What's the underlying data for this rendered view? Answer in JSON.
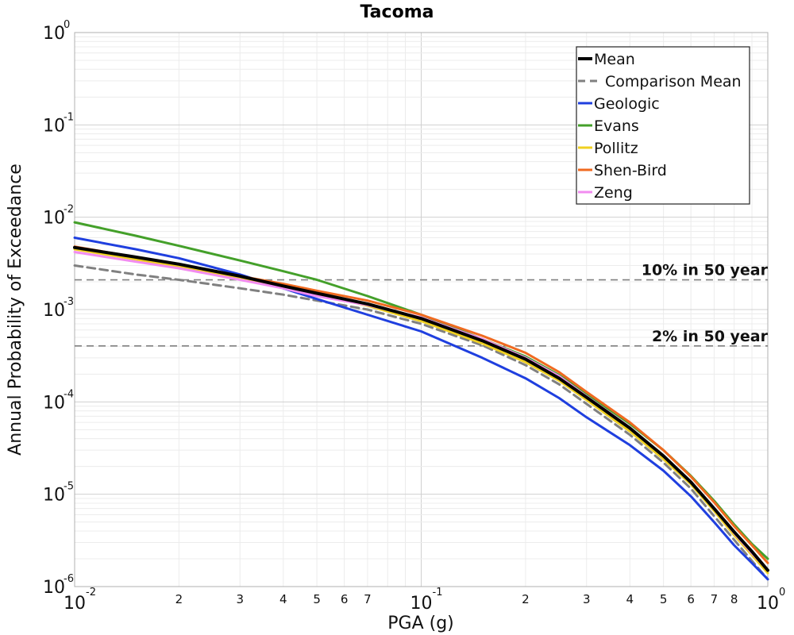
{
  "chart_data": {
    "type": "line",
    "title": "Tacoma",
    "xlabel": "PGA (g)",
    "ylabel": "Annual Probability of Exceedance",
    "xscale": "log",
    "yscale": "log",
    "xlim": [
      0.01,
      1
    ],
    "ylim": [
      1e-06,
      1
    ],
    "grid": true,
    "legend_position": "top-right",
    "x_ticks_major": [
      {
        "value": 0.01,
        "base": "10",
        "exp": "-2"
      },
      {
        "value": 0.1,
        "base": "10",
        "exp": "-1"
      },
      {
        "value": 1,
        "base": "10",
        "exp": "0"
      }
    ],
    "x_ticks_minor": [
      {
        "value": 0.02,
        "label": "2"
      },
      {
        "value": 0.03,
        "label": "3"
      },
      {
        "value": 0.04,
        "label": "4"
      },
      {
        "value": 0.05,
        "label": "5"
      },
      {
        "value": 0.06,
        "label": "6"
      },
      {
        "value": 0.07,
        "label": "7"
      },
      {
        "value": 0.2,
        "label": "2"
      },
      {
        "value": 0.3,
        "label": "3"
      },
      {
        "value": 0.4,
        "label": "4"
      },
      {
        "value": 0.5,
        "label": "5"
      },
      {
        "value": 0.6,
        "label": "6"
      },
      {
        "value": 0.7,
        "label": "7"
      },
      {
        "value": 0.8,
        "label": "8"
      }
    ],
    "y_ticks_major": [
      {
        "value": 1,
        "base": "10",
        "exp": "0"
      },
      {
        "value": 0.1,
        "base": "10",
        "exp": "-1"
      },
      {
        "value": 0.01,
        "base": "10",
        "exp": "-2"
      },
      {
        "value": 0.001,
        "base": "10",
        "exp": "-3"
      },
      {
        "value": 0.0001,
        "base": "10",
        "exp": "-4"
      },
      {
        "value": 1e-05,
        "base": "10",
        "exp": "-5"
      },
      {
        "value": 1e-06,
        "base": "10",
        "exp": "-6"
      }
    ],
    "x": [
      0.01,
      0.015,
      0.02,
      0.03,
      0.04,
      0.05,
      0.07,
      0.1,
      0.15,
      0.2,
      0.25,
      0.3,
      0.4,
      0.5,
      0.6,
      0.7,
      0.8,
      0.9,
      1.0
    ],
    "series": [
      {
        "name": "Mean",
        "color": "#000000",
        "dash": "solid",
        "width": 4,
        "values": [
          0.0047,
          0.0037,
          0.0031,
          0.0023,
          0.0018,
          0.0015,
          0.00115,
          0.0008,
          0.00046,
          0.00029,
          0.00018,
          0.000112,
          5.2e-05,
          2.6e-05,
          1.35e-05,
          7e-06,
          3.9e-06,
          2.4e-06,
          1.5e-06
        ]
      },
      {
        "name": "Comparison Mean",
        "color": "#808080",
        "dash": "dashed",
        "width": 3,
        "values": [
          0.003,
          0.0024,
          0.0021,
          0.0017,
          0.00145,
          0.00125,
          0.001,
          0.0007,
          0.00041,
          0.00025,
          0.000155,
          9.5e-05,
          4.4e-05,
          2.2e-05,
          1.15e-05,
          5.8e-06,
          3.2e-06,
          1.9e-06,
          1.2e-06
        ]
      },
      {
        "name": "Geologic",
        "color": "#1f3fdf",
        "dash": "solid",
        "width": 3,
        "values": [
          0.006,
          0.0045,
          0.0036,
          0.0024,
          0.0017,
          0.0013,
          0.00088,
          0.00058,
          0.0003,
          0.00018,
          0.00011,
          6.8e-05,
          3.4e-05,
          1.8e-05,
          9.5e-06,
          5e-06,
          2.8e-06,
          1.8e-06,
          1.2e-06
        ]
      },
      {
        "name": "Evans",
        "color": "#44a02a",
        "dash": "solid",
        "width": 3,
        "values": [
          0.0088,
          0.0063,
          0.0049,
          0.0034,
          0.0026,
          0.0021,
          0.0014,
          0.00088,
          0.00048,
          0.00031,
          0.000195,
          0.000122,
          5.8e-05,
          3e-05,
          1.58e-05,
          8.5e-06,
          4.7e-06,
          2.9e-06,
          2e-06
        ]
      },
      {
        "name": "Pollitz",
        "color": "#f0d020",
        "dash": "solid",
        "width": 3,
        "values": [
          0.0045,
          0.0035,
          0.0029,
          0.0022,
          0.0018,
          0.0015,
          0.0011,
          0.00075,
          0.00043,
          0.00027,
          0.00017,
          0.000105,
          4.8e-05,
          2.4e-05,
          1.28e-05,
          6.6e-06,
          3.6e-06,
          2.2e-06,
          1.4e-06
        ]
      },
      {
        "name": "Shen-Bird",
        "color": "#f06a20",
        "dash": "solid",
        "width": 3,
        "values": [
          0.0048,
          0.0037,
          0.0031,
          0.0023,
          0.0019,
          0.0016,
          0.00125,
          0.00088,
          0.00052,
          0.00034,
          0.00021,
          0.000128,
          6e-05,
          3e-05,
          1.55e-05,
          8.2e-06,
          4.5e-06,
          2.8e-06,
          1.8e-06
        ]
      },
      {
        "name": "Zeng",
        "color": "#f28cf0",
        "dash": "solid",
        "width": 3,
        "values": [
          0.0042,
          0.0033,
          0.0028,
          0.0021,
          0.0017,
          0.0014,
          0.00112,
          0.00082,
          0.00048,
          0.0003,
          0.00019,
          0.000115,
          5.3e-05,
          2.6e-05,
          1.35e-05,
          7e-06,
          3.8e-06,
          2.3e-06,
          1.5e-06
        ]
      }
    ],
    "reference_lines": [
      {
        "label": "10% in 50 year",
        "value": 0.0021,
        "color": "#808080"
      },
      {
        "label": "2% in 50 year",
        "value": 0.000404,
        "color": "#808080"
      }
    ]
  }
}
